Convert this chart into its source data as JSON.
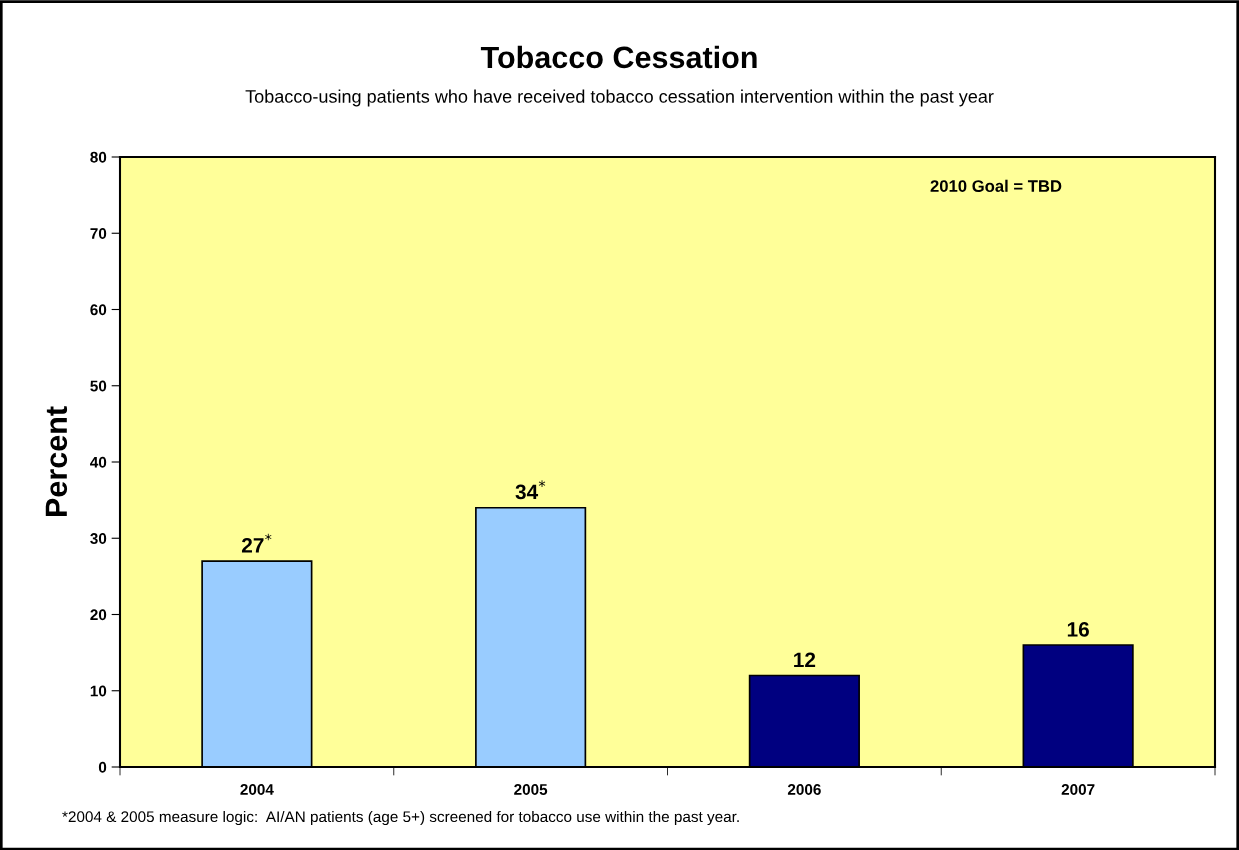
{
  "chart_data": {
    "type": "bar",
    "title": "Tobacco Cessation",
    "subtitle": "Tobacco-using patients who have received tobacco cessation intervention within the past year",
    "ylabel": "Percent",
    "categories": [
      "2004",
      "2005",
      "2006",
      "2007"
    ],
    "values": [
      27,
      34,
      12,
      16
    ],
    "colors": [
      "#99ccff",
      "#99ccff",
      "#000080",
      "#000080"
    ],
    "value_labels": [
      "27$^{*}$",
      "34$^{*}$",
      "12",
      "16"
    ],
    "ylim": [
      0,
      80
    ],
    "yticks": [
      0,
      10,
      20,
      30,
      40,
      50,
      60,
      70,
      80
    ],
    "grid": false,
    "legend": false,
    "annotations": [
      "2010 Goal = TBD",
      "*2004 & 2005 measure logic:  AI/AN patients (age 5+) screened for tobacco use within the past year."
    ]
  }
}
